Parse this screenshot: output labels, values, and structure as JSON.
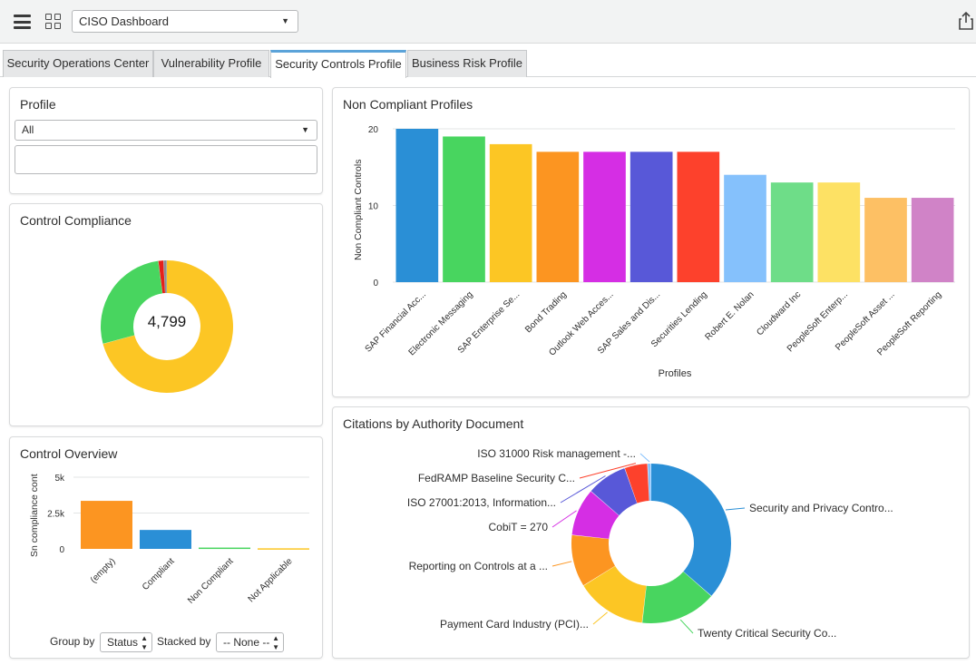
{
  "header": {
    "dashboard_select": "CISO Dashboard"
  },
  "tabs": [
    {
      "label": "Security Operations Center"
    },
    {
      "label": "Vulnerability Profile"
    },
    {
      "label": "Security Controls Profile"
    },
    {
      "label": "Business Risk Profile"
    }
  ],
  "profile_widget": {
    "title": "Profile",
    "select_value": "All",
    "input_value": ""
  },
  "control_compliance": {
    "title": "Control Compliance",
    "center_total": "4,799",
    "chart_data": {
      "type": "pie",
      "slices": [
        {
          "value": 3400,
          "color": "#fcc624"
        },
        {
          "value": 1300,
          "color": "#48d55f"
        },
        {
          "value": 60,
          "color": "#e5211b"
        },
        {
          "value": 39,
          "color": "#8a8f94"
        }
      ]
    }
  },
  "control_overview": {
    "title": "Control Overview",
    "group_by_label": "Group by",
    "group_by_value": "Status",
    "stacked_by_label": "Stacked by",
    "stacked_by_value": "-- None --",
    "chart_data": {
      "type": "bar",
      "ylabel": "Sn compliance cont",
      "ylim": [
        0,
        5000
      ],
      "yticks": [
        "0",
        "2.5k",
        "5k"
      ],
      "categories": [
        "(empty)",
        "Compliant",
        "Non Compliant",
        "Not Applicable"
      ],
      "values": [
        3350,
        1320,
        90,
        40
      ],
      "colors": [
        "#fc9521",
        "#2a8fd6",
        "#48d55f",
        "#fcc624"
      ]
    }
  },
  "non_compliant_profiles": {
    "title": "Non Compliant Profiles",
    "chart_data": {
      "type": "bar",
      "xlabel": "Profiles",
      "ylabel": "Non Compliant Controls",
      "ylim": [
        0,
        20
      ],
      "yticks": [
        "0",
        "10",
        "20"
      ],
      "categories": [
        "SAP Financial Acc...",
        "Electronic Messaging",
        "SAP Enterprise Se...",
        "Bond Trading",
        "Outlook Web Acces...",
        "SAP Sales and Dis...",
        "Securities Lending",
        "Robert E. Nolan",
        "Cloudward Inc",
        "PeopleSoft Enterp...",
        "PeopleSoft Asset ...",
        "PeopleSoft Reporting"
      ],
      "values": [
        20,
        19,
        18,
        17,
        17,
        17,
        17,
        14,
        13,
        13,
        11,
        11
      ],
      "colors": [
        "#2a8fd6",
        "#48d55f",
        "#fcc624",
        "#fc9521",
        "#d52ee4",
        "#5858d8",
        "#fd412c",
        "#85c1fc",
        "#6edd88",
        "#fde164",
        "#fdc064",
        "#d083c7"
      ]
    }
  },
  "citations": {
    "title": "Citations by Authority Document",
    "chart_data": {
      "type": "pie",
      "slices": [
        {
          "label": "Security and Privacy Contro...",
          "value": 1020,
          "color": "#2a8fd6"
        },
        {
          "label": "Twenty Critical Security Co...",
          "value": 430,
          "color": "#48d55f"
        },
        {
          "label": "Payment Card Industry (PCI)...",
          "value": 400,
          "color": "#fcc624"
        },
        {
          "label": "Reporting on Controls at a ...",
          "value": 295,
          "color": "#fc9521"
        },
        {
          "label": "CobiT = 270",
          "value": 270,
          "color": "#d52ee4"
        },
        {
          "label": "ISO 27001:2013, Information...",
          "value": 230,
          "color": "#5858d8"
        },
        {
          "label": "FedRAMP Baseline Security C...",
          "value": 130,
          "color": "#fd412c"
        },
        {
          "label": "ISO 31000 Risk management -...",
          "value": 20,
          "color": "#85c1fc"
        }
      ]
    }
  }
}
